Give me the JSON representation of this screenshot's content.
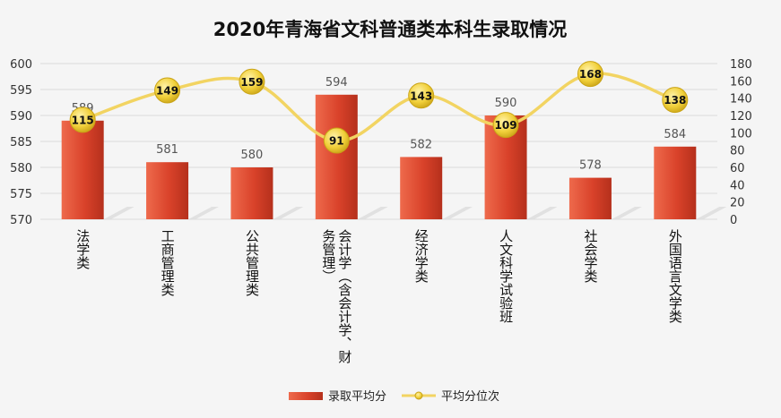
{
  "chart_data": {
    "type": "bar",
    "title": "2020年青海省文科普通类本科生录取情况",
    "categories": [
      "法学类",
      "工商管理类",
      "公共管理类",
      "会计学（含会计学、财务管理）",
      "经济学类",
      "人文科学试验班",
      "社会学类",
      "外国语言文学类"
    ],
    "category_lines": [
      [
        "法学类"
      ],
      [
        "工商管理类"
      ],
      [
        "公共管理类"
      ],
      [
        "会计学（含会计学、财",
        "务管理）"
      ],
      [
        "经济学类"
      ],
      [
        "人文科学试验班"
      ],
      [
        "社会学类"
      ],
      [
        "外国语言文学类"
      ]
    ],
    "series": [
      {
        "name": "录取平均分",
        "type": "bar",
        "axis": "left",
        "color": "#d9422a",
        "values": [
          589,
          581,
          580,
          594,
          582,
          590,
          578,
          584
        ]
      },
      {
        "name": "平均分位次",
        "type": "line",
        "axis": "right",
        "color": "#f2d462",
        "values": [
          115,
          149,
          159,
          91,
          143,
          109,
          168,
          138
        ]
      }
    ],
    "y_left": {
      "min": 570,
      "max": 600,
      "ticks": [
        570,
        575,
        580,
        585,
        590,
        595,
        600
      ]
    },
    "y_right": {
      "min": 0,
      "max": 180,
      "ticks": [
        0,
        20,
        40,
        60,
        80,
        100,
        120,
        140,
        160,
        180
      ]
    },
    "legend_position": "bottom"
  }
}
